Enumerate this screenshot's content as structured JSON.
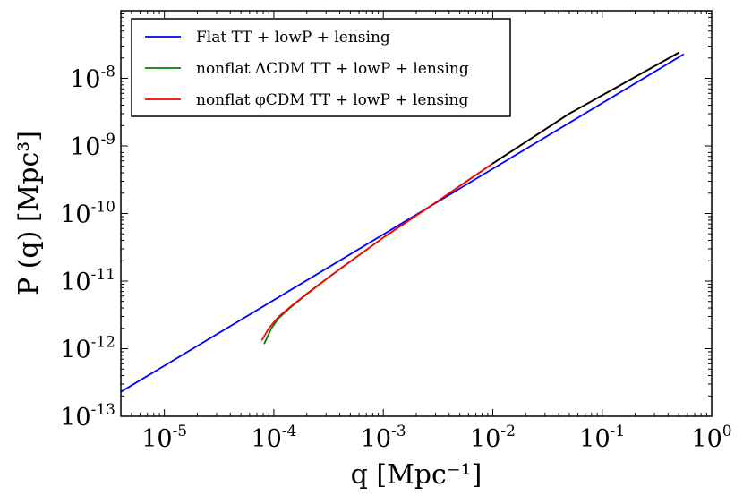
{
  "chart_data": {
    "type": "line",
    "title": "",
    "xlabel": "q [Mpc⁻¹]",
    "ylabel": "P (q) [Mpc³]",
    "xscale": "log",
    "yscale": "log",
    "xlim": [
      4e-06,
      1.0
    ],
    "ylim": [
      1e-13,
      1e-07
    ],
    "x_ticks": [
      {
        "value": 1e-05,
        "label": "10",
        "exp": "-5"
      },
      {
        "value": 0.0001,
        "label": "10",
        "exp": "-4"
      },
      {
        "value": 0.001,
        "label": "10",
        "exp": "-3"
      },
      {
        "value": 0.01,
        "label": "10",
        "exp": "-2"
      },
      {
        "value": 0.1,
        "label": "10",
        "exp": "-1"
      },
      {
        "value": 1.0,
        "label": "10",
        "exp": "0"
      }
    ],
    "y_ticks": [
      {
        "value": 1e-13,
        "label": "10",
        "exp": "-13"
      },
      {
        "value": 1e-12,
        "label": "10",
        "exp": "-12"
      },
      {
        "value": 1e-11,
        "label": "10",
        "exp": "-11"
      },
      {
        "value": 1e-10,
        "label": "10",
        "exp": "-10"
      },
      {
        "value": 1e-09,
        "label": "10",
        "exp": "-9"
      },
      {
        "value": 1e-08,
        "label": "10",
        "exp": "-8"
      }
    ],
    "legend_location": "top-left",
    "series": [
      {
        "name": "Flat TT + lowP + lensing",
        "color": "#0000ff",
        "x": [
          4e-06,
          0.55
        ],
        "y": [
          2.3e-13,
          2.25e-08
        ]
      },
      {
        "name": "nonflat ΛCDM TT + lowP + lensing",
        "color": "#008000",
        "x": [
          8.2e-05,
          9.5e-05,
          0.00011,
          0.00014,
          0.0002,
          0.0003,
          0.0005,
          0.001,
          0.003,
          0.01,
          0.05,
          0.5
        ],
        "y": [
          1.2e-12,
          2e-12,
          2.8e-12,
          4e-12,
          6.4e-12,
          1.06e-11,
          1.95e-11,
          4.4e-11,
          1.45e-10,
          5.5e-10,
          3e-09,
          2.4e-08
        ]
      },
      {
        "name": "nonflat φCDM TT + lowP + lensing",
        "color": "#ff0000",
        "x": [
          7.8e-05,
          9e-05,
          0.00011,
          0.00014,
          0.0002,
          0.0003,
          0.0005,
          0.001,
          0.003,
          0.01,
          0.05,
          0.5
        ],
        "y": [
          1.35e-12,
          2e-12,
          2.95e-12,
          4.1e-12,
          6.5e-12,
          1.07e-11,
          1.96e-11,
          4.4e-11,
          1.45e-10,
          5.5e-10,
          3e-09,
          2.4e-08
        ]
      },
      {
        "name": "",
        "color": "#000000",
        "x": [
          0.01,
          0.05,
          0.5
        ],
        "y": [
          5.5e-10,
          3e-09,
          2.4e-08
        ]
      }
    ]
  }
}
